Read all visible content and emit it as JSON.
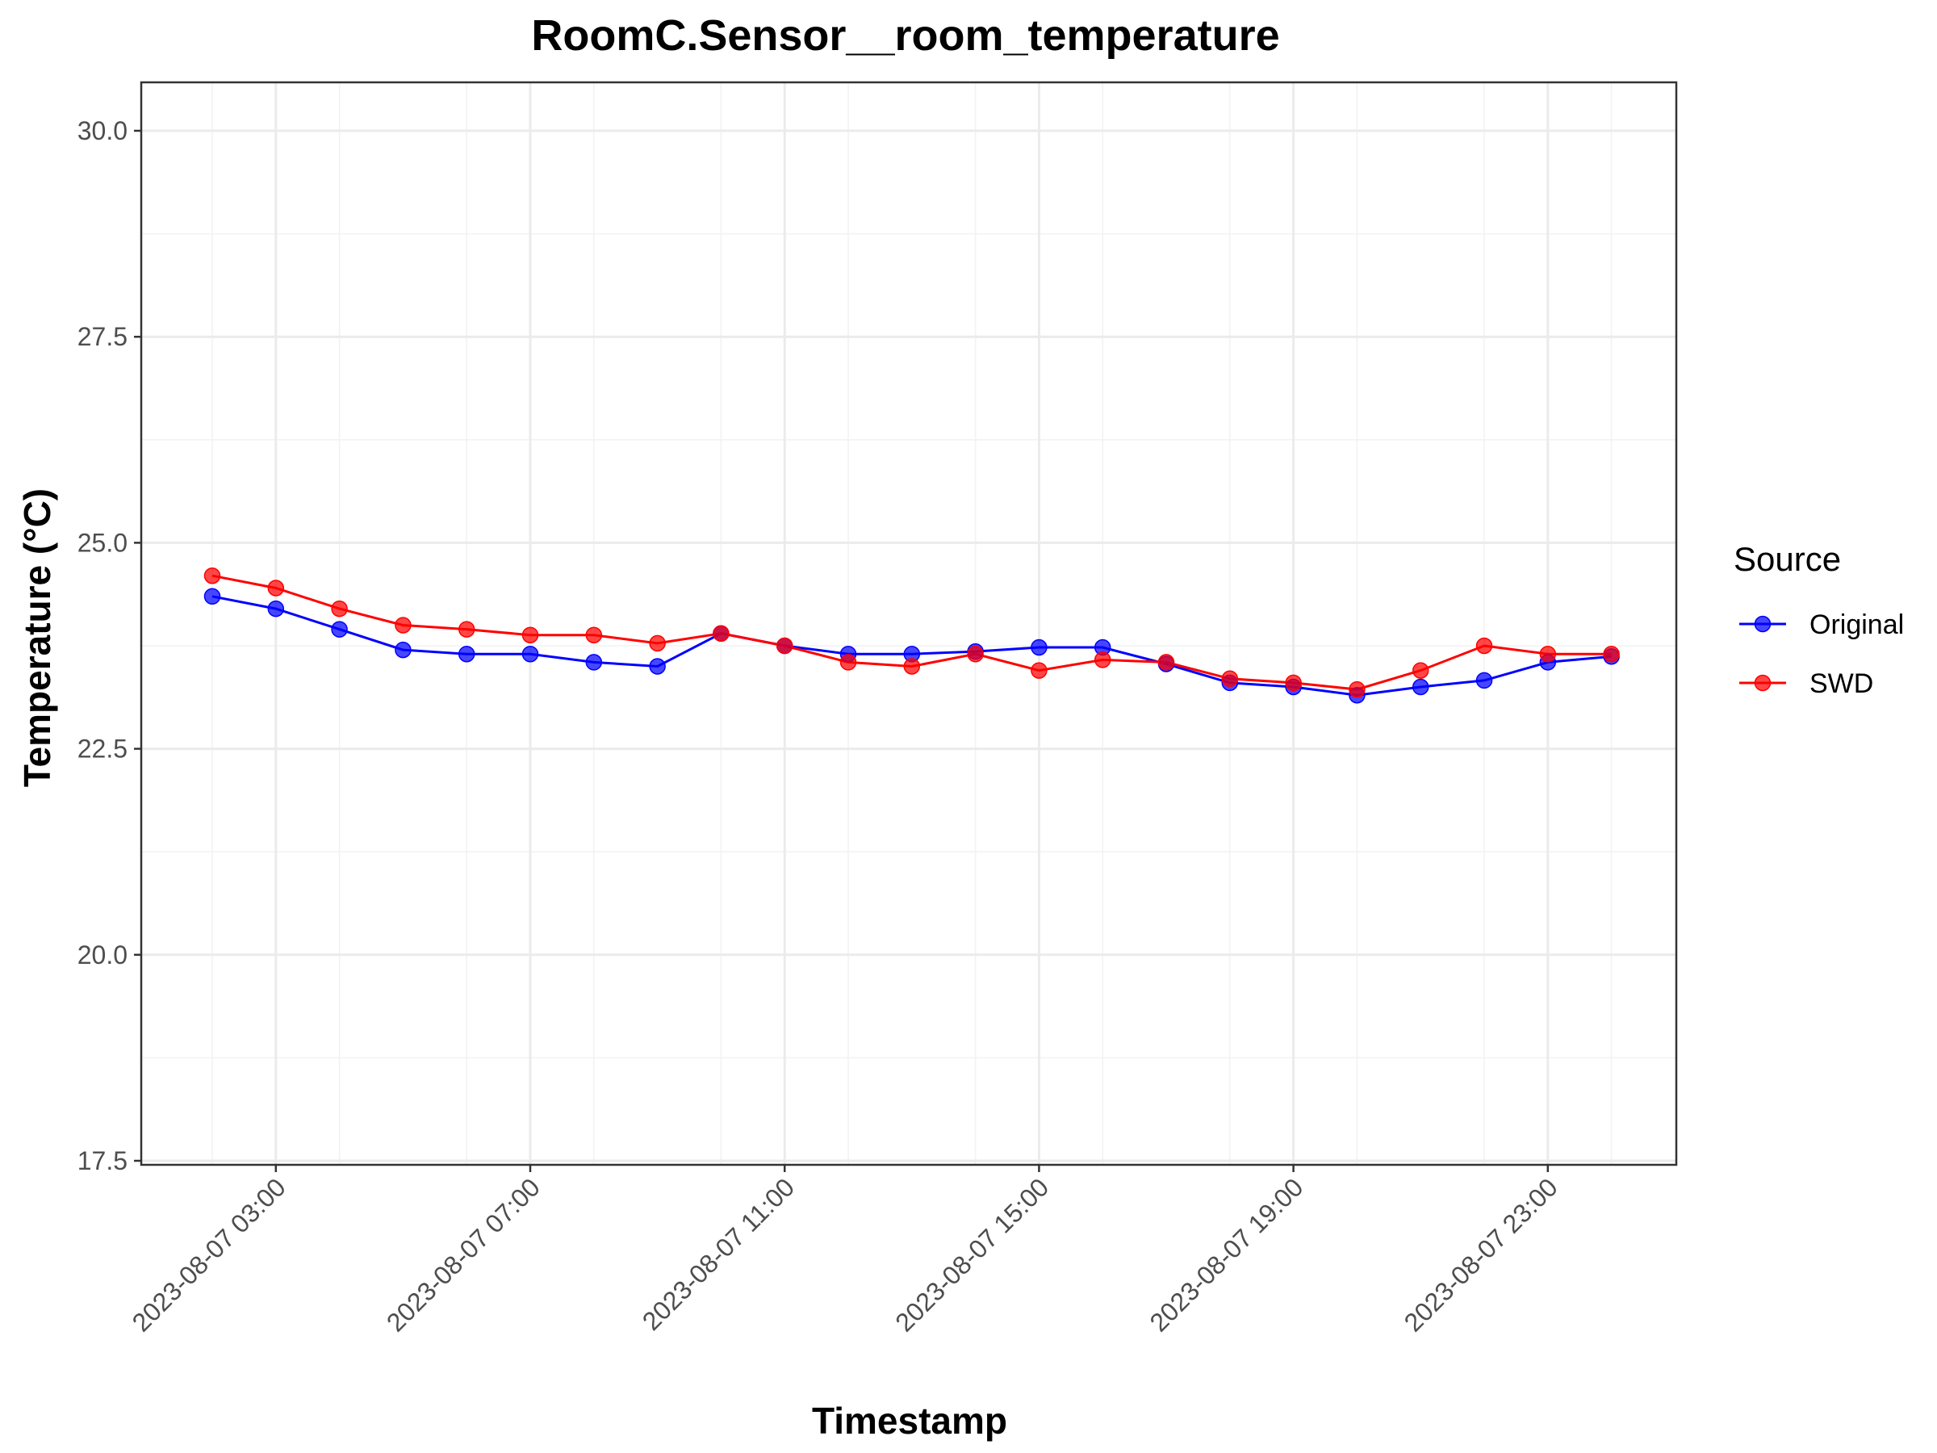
{
  "chart_data": {
    "type": "line",
    "title": "RoomC.Sensor__room_temperature",
    "xlabel": "Timestamp",
    "ylabel": "Temperature (°C)",
    "x": [
      "2023-08-07 02:00",
      "2023-08-07 03:00",
      "2023-08-07 04:00",
      "2023-08-07 05:00",
      "2023-08-07 06:00",
      "2023-08-07 07:00",
      "2023-08-07 08:00",
      "2023-08-07 09:00",
      "2023-08-07 10:00",
      "2023-08-07 11:00",
      "2023-08-07 12:00",
      "2023-08-07 13:00",
      "2023-08-07 14:00",
      "2023-08-07 15:00",
      "2023-08-07 16:00",
      "2023-08-07 17:00",
      "2023-08-07 18:00",
      "2023-08-07 19:00",
      "2023-08-07 20:00",
      "2023-08-07 21:00",
      "2023-08-07 22:00",
      "2023-08-07 23:00",
      "2023-08-08 00:00"
    ],
    "series": [
      {
        "name": "Original",
        "color": "#0000ff",
        "values": [
          24.35,
          24.2,
          23.95,
          23.7,
          23.65,
          23.65,
          23.55,
          23.5,
          23.9,
          23.75,
          23.65,
          23.65,
          23.68,
          23.73,
          23.73,
          23.53,
          23.3,
          23.25,
          23.15,
          23.25,
          23.33,
          23.55,
          23.62
        ]
      },
      {
        "name": "SWD",
        "color": "#ff0000",
        "values": [
          24.6,
          24.45,
          24.2,
          24.0,
          23.95,
          23.88,
          23.88,
          23.78,
          23.9,
          23.75,
          23.55,
          23.5,
          23.65,
          23.45,
          23.58,
          23.55,
          23.35,
          23.3,
          23.22,
          23.45,
          23.75,
          23.65,
          23.65
        ]
      }
    ],
    "x_ticks": [
      "2023-08-07 03:00",
      "2023-08-07 07:00",
      "2023-08-07 11:00",
      "2023-08-07 15:00",
      "2023-08-07 19:00",
      "2023-08-07 23:00"
    ],
    "y_ticks": [
      17.5,
      20.0,
      22.5,
      25.0,
      27.5,
      30.0
    ],
    "y_tick_labels": [
      "17.5",
      "20.0",
      "22.5",
      "25.0",
      "27.5",
      "30.0"
    ],
    "ylim": [
      17.5,
      30.0
    ],
    "grid": true,
    "legend": {
      "title": "Source",
      "position": "right"
    }
  }
}
